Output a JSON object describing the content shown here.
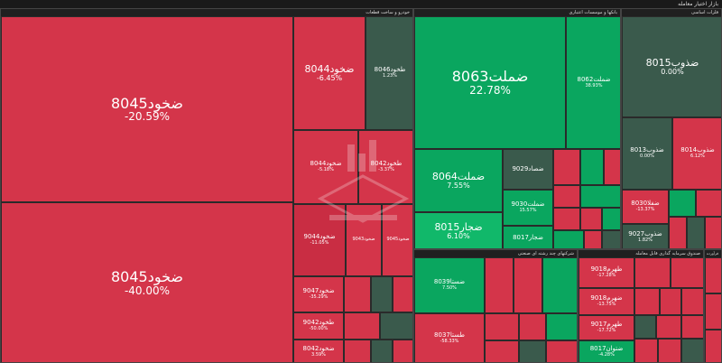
{
  "header": {
    "title": "بازار اختیار معامله"
  },
  "sectors": [
    {
      "label": "خودرو و ساخت قطعات"
    },
    {
      "label": "بانکها و موسسات اعتباری"
    },
    {
      "label": "فلزات اساسی"
    },
    {
      "label": "شرکتهای چند رشته ای صنعتی"
    },
    {
      "label": "صندوق سرمایه گذاری قابل معامله"
    },
    {
      "label": "فرآورده"
    }
  ],
  "cells": [
    {
      "name": "ضخود8045",
      "pct": "-20.59%"
    },
    {
      "name": "ضخود8045",
      "pct": "-40.00%"
    },
    {
      "name": "ضخود8044",
      "pct": "-6.45%"
    },
    {
      "name": "طخود8046",
      "pct": "1.23%"
    },
    {
      "name": "ضخود8044",
      "pct": "-5.18%"
    },
    {
      "name": "طخود8042",
      "pct": "-3.37%"
    },
    {
      "name": "ضخود9044",
      "pct": "-11.05%"
    },
    {
      "name": "ضخود9043",
      "pct": ""
    },
    {
      "name": "ضخود9045",
      "pct": ""
    },
    {
      "name": "ضخود9047",
      "pct": "-35.29%"
    },
    {
      "name": "طخود9042",
      "pct": "-50.00%"
    },
    {
      "name": "ضخود8042",
      "pct": "3.59%"
    },
    {
      "name": "ضملت8063",
      "pct": "22.78%"
    },
    {
      "name": "ضملت8062",
      "pct": "38.93%"
    },
    {
      "name": "ضملت8064",
      "pct": "7.55%"
    },
    {
      "name": "ضصاد9029",
      "pct": ""
    },
    {
      "name": "ضجار8015",
      "pct": "6.10%"
    },
    {
      "name": "ضملت9030",
      "pct": "15.57%"
    },
    {
      "name": "ضجار8017",
      "pct": ""
    },
    {
      "name": "ضذوب8015",
      "pct": "0.00%"
    },
    {
      "name": "ضذوب8013",
      "pct": "0.00%"
    },
    {
      "name": "ضذوب8014",
      "pct": "6.12%"
    },
    {
      "name": "ضفلا8030",
      "pct": "-13.37%"
    },
    {
      "name": "ضذوب9027",
      "pct": "1.82%"
    },
    {
      "name": "ضستا8039",
      "pct": "7.50%"
    },
    {
      "name": "طستا8037",
      "pct": "-58.33%"
    },
    {
      "name": "طهرم9018",
      "pct": "-17.28%"
    },
    {
      "name": "ضهرم9018",
      "pct": "-13.75%"
    },
    {
      "name": "طهرم9017",
      "pct": "-17.72%"
    },
    {
      "name": "ضتوان8017",
      "pct": "-4.28%"
    }
  ]
}
